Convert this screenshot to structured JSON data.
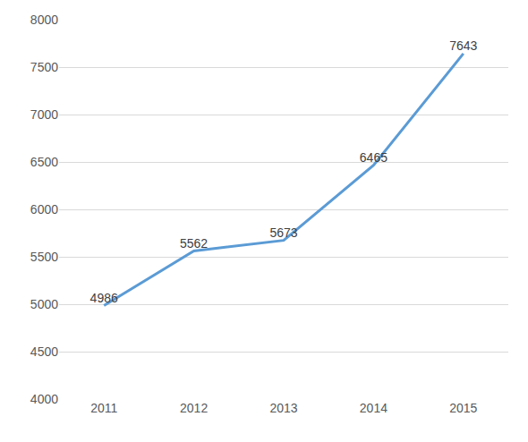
{
  "chart_data": {
    "type": "line",
    "categories": [
      "2011",
      "2012",
      "2013",
      "2014",
      "2015"
    ],
    "values": [
      4986,
      5562,
      5673,
      6465,
      7643
    ],
    "color": "#5b9bd5",
    "ylim": [
      4000,
      8000
    ],
    "yticks": [
      4000,
      4500,
      5000,
      5500,
      6000,
      6500,
      7000,
      7500,
      8000
    ],
    "grid": true,
    "data_labels": true
  }
}
